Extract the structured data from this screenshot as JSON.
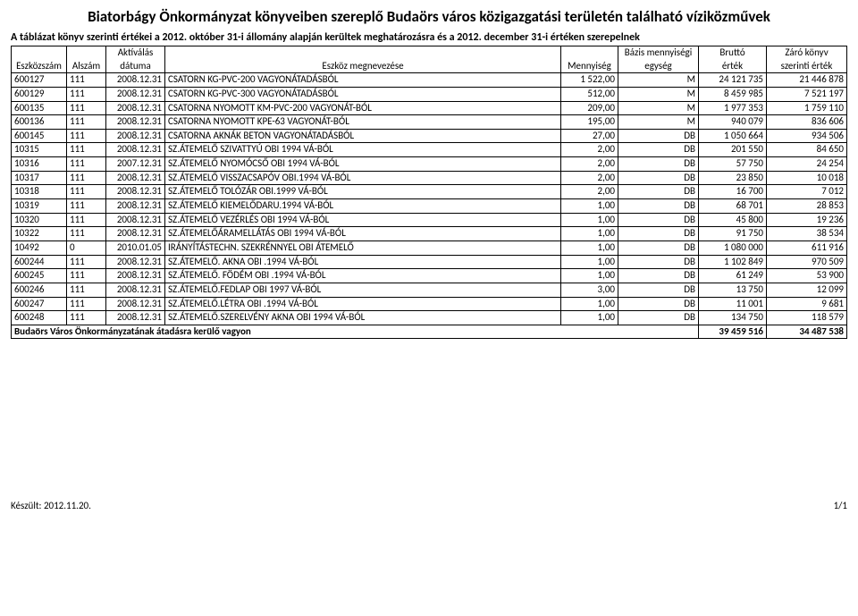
{
  "title": "Biatorbágy Önkormányzat könyveiben szereplő Budaörs város közigazgatási területén található víziközművek",
  "subtitle": "A táblázat könyv szerinti értékei a 2012. október 31-i állomány alapján kerültek meghatározásra és a 2012. december 31-i értéken szerepelnek",
  "headers": {
    "eszkozszam": "Eszközszám",
    "alszam": "Alszám",
    "datum_top": "Aktíválás",
    "datum_bottom": "dátuma",
    "megnev": "Eszköz megnevezése",
    "mennyiseg": "Mennyiség",
    "egyseg_top": "Bázis mennyiségi",
    "egyseg_bottom": "egység",
    "brutto_top": "Bruttó",
    "brutto_bottom": "érték",
    "zaro_top": "Záró könyv",
    "zaro_bottom": "szerinti érték"
  },
  "rows": [
    {
      "eszkozszam": "600127",
      "alszam": "111",
      "datum": "2008.12.31",
      "megnev": "CSATORN KG-PVC-200 VAGYONÁTADÁSBÓL",
      "menny": "1 522,00",
      "egyseg": "M",
      "brutto": "24 121 735",
      "zaro": "21 446 878"
    },
    {
      "eszkozszam": "600129",
      "alszam": "111",
      "datum": "2008.12.31",
      "megnev": "CSATORN KG-PVC-300 VAGYONÁTADÁSBÓL",
      "menny": "512,00",
      "egyseg": "M",
      "brutto": "8 459 985",
      "zaro": "7 521 197"
    },
    {
      "eszkozszam": "600135",
      "alszam": "111",
      "datum": "2008.12.31",
      "megnev": "CSATORNA NYOMOTT KM-PVC-200 VAGYONÁT-BÓL",
      "menny": "209,00",
      "egyseg": "M",
      "brutto": "1 977 353",
      "zaro": "1 759 110"
    },
    {
      "eszkozszam": "600136",
      "alszam": "111",
      "datum": "2008.12.31",
      "megnev": "CSATORNA NYOMOTT KPE-63 VAGYONÁT-BÓL",
      "menny": "195,00",
      "egyseg": "M",
      "brutto": "940 079",
      "zaro": "836 606"
    },
    {
      "eszkozszam": "600145",
      "alszam": "111",
      "datum": "2008.12.31",
      "megnev": "CSATORNA AKNÁK BETON VAGYONÁTADÁSBÓL",
      "menny": "27,00",
      "egyseg": "DB",
      "brutto": "1 050 664",
      "zaro": "934 506"
    },
    {
      "eszkozszam": "10315",
      "alszam": "111",
      "datum": "2008.12.31",
      "megnev": "SZ.ÁTEMELŐ SZIVATTYÚ  OBI 1994 VÁ-BÓL",
      "menny": "2,00",
      "egyseg": "DB",
      "brutto": "201 550",
      "zaro": "84 650"
    },
    {
      "eszkozszam": "10316",
      "alszam": "111",
      "datum": "2007.12.31",
      "megnev": "SZ.ÁTEMELŐ NYOMÓCSŐ  OBI 1994 VÁ-BÓL",
      "menny": "2,00",
      "egyseg": "DB",
      "brutto": "57 750",
      "zaro": "24 254"
    },
    {
      "eszkozszam": "10317",
      "alszam": "111",
      "datum": "2008.12.31",
      "megnev": "SZ.ÁTEMELŐ VISSZACSAPÓV  OBI.1994 VÁ-BÓL",
      "menny": "2,00",
      "egyseg": "DB",
      "brutto": "23 850",
      "zaro": "10 018"
    },
    {
      "eszkozszam": "10318",
      "alszam": "111",
      "datum": "2008.12.31",
      "megnev": "SZ.ÁTEMELŐ TOLÓZÁR OBI.1999 VÁ-BÓL",
      "menny": "2,00",
      "egyseg": "DB",
      "brutto": "16 700",
      "zaro": "7 012"
    },
    {
      "eszkozszam": "10319",
      "alszam": "111",
      "datum": "2008.12.31",
      "megnev": "SZ.ÁTEMELŐ KIEMELŐDARU.1994 VÁ-BÓL",
      "menny": "1,00",
      "egyseg": "DB",
      "brutto": "68 701",
      "zaro": "28 853"
    },
    {
      "eszkozszam": "10320",
      "alszam": "111",
      "datum": "2008.12.31",
      "megnev": "SZ.ÁTEMELŐ VEZÉRLÉS OBI 1994 VÁ-BÓL",
      "menny": "1,00",
      "egyseg": "DB",
      "brutto": "45 800",
      "zaro": "19 236"
    },
    {
      "eszkozszam": "10322",
      "alszam": "111",
      "datum": "2008.12.31",
      "megnev": "SZ.ÁTEMELŐÁRAMELLÁTÁS OBI 1994 VÁ-BÓL",
      "menny": "1,00",
      "egyseg": "DB",
      "brutto": "91 750",
      "zaro": "38 534"
    },
    {
      "eszkozszam": "10492",
      "alszam": "0",
      "datum": "2010.01.05",
      "megnev": "IRÁNYÍTÁSTECHN. SZEKRÉNNYEL OBI ÁTEMELŐ",
      "menny": "1,00",
      "egyseg": "DB",
      "brutto": "1 080 000",
      "zaro": "611 916"
    },
    {
      "eszkozszam": "600244",
      "alszam": "111",
      "datum": "2008.12.31",
      "megnev": "SZ.ÁTEMELŐ. AKNA OBI     .1994 VÁ-BÓL",
      "menny": "1,00",
      "egyseg": "DB",
      "brutto": "1 102 849",
      "zaro": "970 509"
    },
    {
      "eszkozszam": "600245",
      "alszam": "111",
      "datum": "2008.12.31",
      "megnev": "SZ.ÁTEMELŐ. FÖDÉM OBI    .1994 VÁ-BÓL",
      "menny": "1,00",
      "egyseg": "DB",
      "brutto": "61 249",
      "zaro": "53 900"
    },
    {
      "eszkozszam": "600246",
      "alszam": "111",
      "datum": "2008.12.31",
      "megnev": "SZ.ÁTEMELŐ.FEDLAP   OBI   1997 VÁ-BÓL",
      "menny": "3,00",
      "egyseg": "DB",
      "brutto": "13 750",
      "zaro": "12 099"
    },
    {
      "eszkozszam": "600247",
      "alszam": "111",
      "datum": "2008.12.31",
      "megnev": "SZ.ÁTEMELŐ.LÉTRA     OBI   .1994 VÁ-BÓL",
      "menny": "1,00",
      "egyseg": "DB",
      "brutto": "11 001",
      "zaro": "9 681"
    },
    {
      "eszkozszam": "600248",
      "alszam": "111",
      "datum": "2008.12.31",
      "megnev": "SZ.ÁTEMELŐ.SZERELVÉNY AKNA  OBI 1994 VÁ-BÓL",
      "menny": "1,00",
      "egyseg": "DB",
      "brutto": "134 750",
      "zaro": "118 579"
    }
  ],
  "total": {
    "label": "Budaörs Város Önkormányzatának átadásra kerülő vagyon",
    "brutto": "39 459 516",
    "zaro": "34 487 538"
  },
  "footer": {
    "left": "Készült: 2012.11.20.",
    "right": "1/1"
  }
}
